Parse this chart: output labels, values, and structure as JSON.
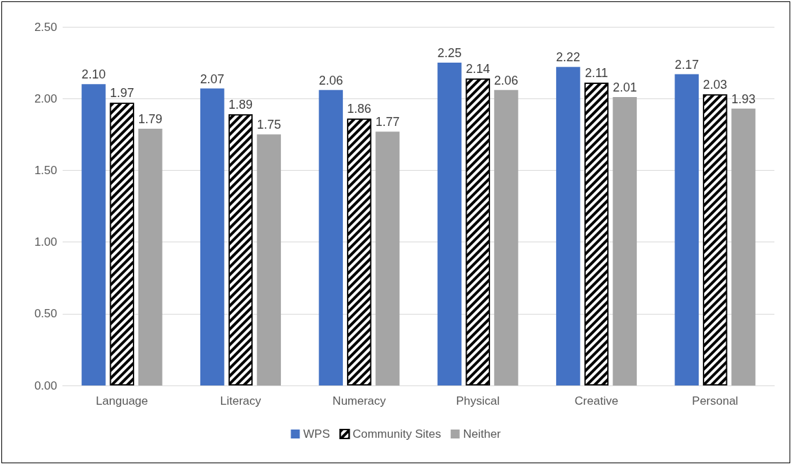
{
  "chart_data": {
    "type": "bar",
    "categories": [
      "Language",
      "Literacy",
      "Numeracy",
      "Physical",
      "Creative",
      "Personal"
    ],
    "series": [
      {
        "name": "WPS",
        "color": "#4472c4",
        "values": [
          2.1,
          2.07,
          2.06,
          2.25,
          2.22,
          2.17
        ],
        "value_labels": [
          "2.10",
          "2.07",
          "2.06",
          "2.25",
          "2.22",
          "2.17"
        ]
      },
      {
        "name": "Community Sites",
        "color": "#ffffff",
        "values": [
          1.97,
          1.89,
          1.86,
          2.14,
          2.11,
          2.03
        ],
        "value_labels": [
          "1.97",
          "1.89",
          "1.86",
          "2.14",
          "2.11",
          "2.03"
        ]
      },
      {
        "name": "Neither",
        "color": "#a5a5a5",
        "values": [
          1.79,
          1.75,
          1.77,
          2.06,
          2.01,
          1.93
        ],
        "value_labels": [
          "1.79",
          "1.75",
          "1.77",
          "2.06",
          "2.01",
          "1.93"
        ]
      }
    ],
    "ylim": [
      0,
      2.5
    ],
    "yticks": [
      {
        "value": 0,
        "label": "0.00"
      },
      {
        "value": 0.5,
        "label": "0.50"
      },
      {
        "value": 1,
        "label": "1.00"
      },
      {
        "value": 1.5,
        "label": "1.50"
      },
      {
        "value": 2,
        "label": "2.00"
      },
      {
        "value": 2.5,
        "label": "2.50"
      }
    ],
    "grid": "y",
    "legend": "bottom"
  }
}
